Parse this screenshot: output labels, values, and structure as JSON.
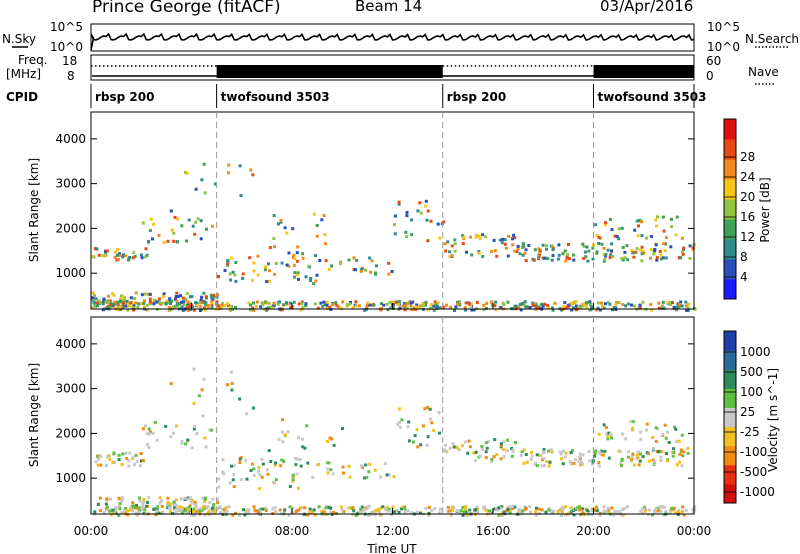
{
  "header": {
    "station": "Prince George (fitACF)",
    "beam": "Beam 14",
    "date": "03/Apr/2016"
  },
  "top_panels": {
    "nsky_label": "N.Sky",
    "nsky_ticks": [
      "10^5",
      "10^0"
    ],
    "nsearch_label": "N.Search",
    "nsearch_ticks": [
      "10^5",
      "10^0"
    ],
    "freq_label_1": "Freq.",
    "freq_label_2": "[MHz]",
    "freq_ticks": [
      "18",
      "8"
    ],
    "nave_label": "Nave",
    "nave_ticks": [
      "60",
      "0"
    ],
    "cpid_label": "CPID",
    "cpid_segments": [
      {
        "label": "rbsp 200",
        "start_h": 0
      },
      {
        "label": "twofsound 3503",
        "start_h": 5
      },
      {
        "label": "rbsp 200",
        "start_h": 14
      },
      {
        "label": "twofsound 3503",
        "start_h": 20
      }
    ]
  },
  "chart_data": [
    {
      "type": "heatmap",
      "name": "power-panel",
      "ylabel": "Slant Range [km]",
      "yticks": [
        "1000",
        "2000",
        "3000",
        "4000"
      ],
      "ylim": [
        200,
        4600
      ],
      "xlim_hours": [
        0,
        24
      ],
      "colorbar_label": "Power [dB]",
      "colorbar_ticks": [
        "4",
        "8",
        "12",
        "16",
        "20",
        "24",
        "28"
      ],
      "colorbar_colors": [
        "#1a1aff",
        "#2b4fb8",
        "#2e8c8c",
        "#3fa05a",
        "#8ec63f",
        "#f5c518",
        "#f08a1a",
        "#e84a14",
        "#e01010"
      ]
    },
    {
      "type": "heatmap",
      "name": "velocity-panel",
      "ylabel": "Slant Range [km]",
      "yticks": [
        "1000",
        "2000",
        "3000",
        "4000"
      ],
      "ylim": [
        200,
        4600
      ],
      "xlim_hours": [
        0,
        24
      ],
      "colorbar_label": "Velocity [m s^-1]",
      "colorbar_ticks": [
        "1000",
        "500",
        "100",
        "25",
        "-25",
        "-100",
        "-500",
        "-1000"
      ],
      "colorbar_colors": [
        "#1f3fa8",
        "#2a6a9a",
        "#2e8a5a",
        "#5fbf3f",
        "#c8c8c8",
        "#f0c020",
        "#f08a10",
        "#e83010",
        "#d01010"
      ]
    }
  ],
  "xaxis": {
    "ticks": [
      "00:00",
      "04:00",
      "08:00",
      "12:00",
      "16:00",
      "20:00",
      "00:00"
    ],
    "label": "Time UT"
  }
}
